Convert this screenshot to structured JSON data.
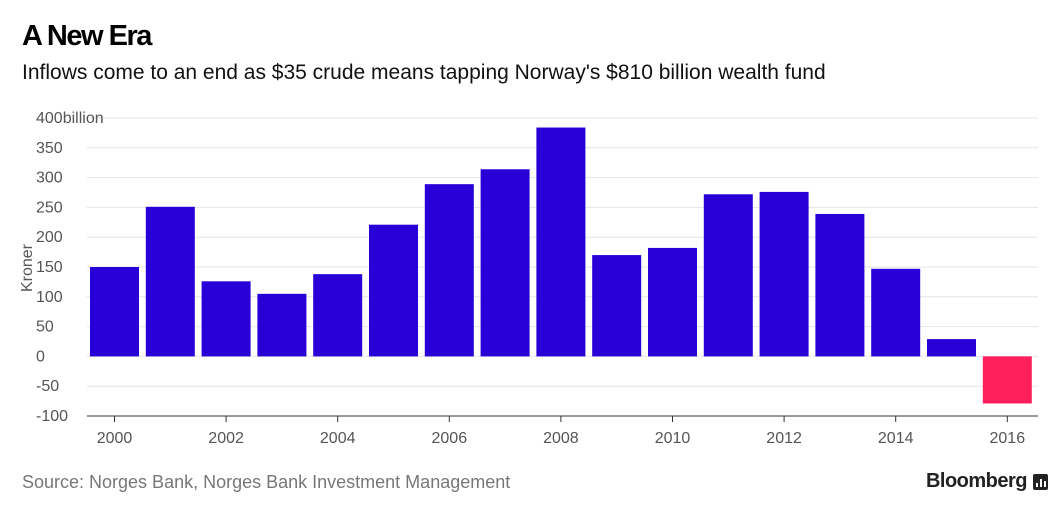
{
  "header": {
    "title": "A New Era",
    "subtitle": "Inflows come to an end as $35 crude means tapping Norway's $810 billion wealth fund"
  },
  "footer": {
    "source": "Source: Norges Bank, Norges Bank Investment Management",
    "brand": "Bloomberg",
    "brand_icon": "bar-chart-icon"
  },
  "colors": {
    "positive": "#2800d7",
    "negative": "#ff1f5a",
    "grid": "#e6e6e6",
    "axis": "#333333"
  },
  "chart_data": {
    "type": "bar",
    "title": "A New Era",
    "subtitle": "Inflows come to an end as $35 crude means tapping Norway's $810 billion wealth fund",
    "xlabel": "",
    "ylabel": "Kroner",
    "ylim": [
      -100,
      400
    ],
    "yticks": [
      -100,
      -50,
      0,
      50,
      100,
      150,
      200,
      250,
      300,
      350,
      400
    ],
    "ytick_labels": [
      "-100",
      "-50",
      "0",
      "50",
      "100",
      "150",
      "200",
      "250",
      "300",
      "350",
      "400billion"
    ],
    "xticks": [
      "2000",
      "2002",
      "2004",
      "2006",
      "2008",
      "2010",
      "2012",
      "2014",
      "2016"
    ],
    "categories": [
      "2000",
      "2001",
      "2002",
      "2003",
      "2004",
      "2005",
      "2006",
      "2007",
      "2008",
      "2009",
      "2010",
      "2011",
      "2012",
      "2013",
      "2014",
      "2015",
      "2016"
    ],
    "values": [
      150,
      251,
      126,
      105,
      138,
      221,
      289,
      314,
      384,
      170,
      182,
      272,
      276,
      239,
      147,
      29,
      -79
    ],
    "grid": true,
    "legend": "none"
  }
}
